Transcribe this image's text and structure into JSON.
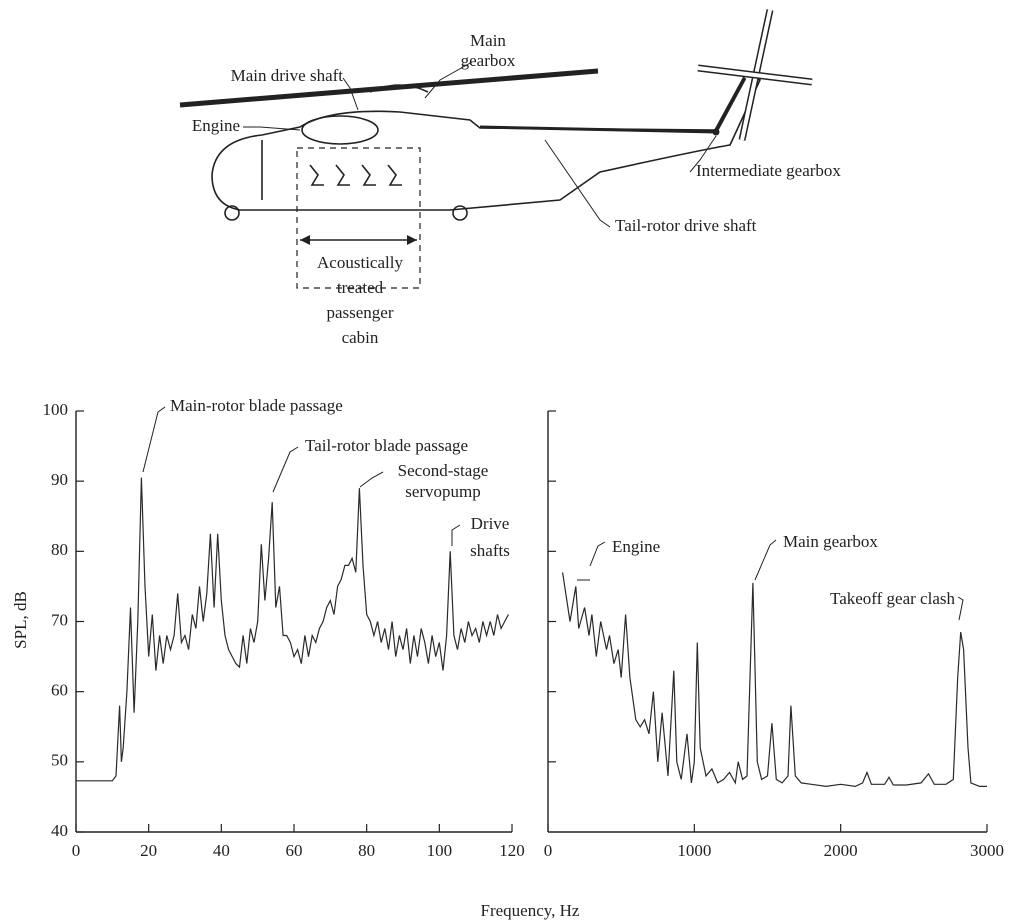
{
  "diagram": {
    "main_drive_shaft": "Main drive shaft",
    "main_gearbox": [
      "Main",
      "gearbox"
    ],
    "engine": "Engine",
    "intermediate_gearbox": "Intermediate gearbox",
    "tail_rotor_drive_shaft": "Tail-rotor drive shaft",
    "cabin": [
      "Acoustically",
      "treated",
      "passenger",
      "cabin"
    ]
  },
  "chart_data": [
    {
      "type": "line",
      "ylabel": "SPL, dB",
      "xlabel": "Frequency, Hz",
      "xlim": [
        0,
        120
      ],
      "xticks": [
        0,
        20,
        40,
        60,
        80,
        100,
        120
      ],
      "ylim": [
        40,
        100
      ],
      "yticks": [
        40,
        50,
        60,
        70,
        80,
        90,
        100
      ],
      "show_ytick_labels": true,
      "x": [
        0,
        5,
        10,
        11,
        12,
        12.5,
        13,
        14,
        15,
        16,
        17,
        18,
        19,
        20,
        21,
        22,
        23,
        24,
        25,
        26,
        27,
        28,
        29,
        30,
        31,
        32,
        33,
        34,
        35,
        36,
        37,
        38,
        39,
        40,
        41,
        42,
        43,
        44,
        45,
        46,
        47,
        48,
        49,
        50,
        51,
        52,
        53,
        54,
        55,
        56,
        57,
        58,
        59,
        60,
        61,
        62,
        63,
        64,
        65,
        66,
        67,
        68,
        69,
        70,
        71,
        72,
        73,
        74,
        75,
        76,
        77,
        78,
        79,
        80,
        81,
        82,
        83,
        84,
        85,
        86,
        87,
        88,
        89,
        90,
        91,
        92,
        93,
        94,
        95,
        96,
        97,
        98,
        99,
        100,
        101,
        102,
        103,
        104,
        105,
        106,
        107,
        108,
        109,
        110,
        111,
        112,
        113,
        114,
        115,
        116,
        117,
        118,
        119
      ],
      "series": [
        {
          "color": "#2a2a2a",
          "values": [
            47.3,
            47.3,
            47.3,
            48,
            58,
            50,
            52,
            60,
            72,
            57,
            70,
            90.5,
            75,
            65,
            71,
            63,
            68,
            64,
            68,
            66,
            68,
            74,
            67,
            68,
            66,
            71,
            69,
            75,
            70,
            74,
            82.5,
            72,
            82.5,
            73,
            68,
            66,
            65,
            64,
            63.5,
            68,
            64,
            69,
            67,
            70,
            81,
            73,
            79,
            87,
            72,
            75,
            68,
            68,
            67,
            65,
            66,
            64,
            68,
            65,
            68,
            67,
            69,
            70,
            72,
            73,
            71,
            75,
            76,
            78,
            78,
            79,
            77,
            89,
            78,
            71,
            70,
            68,
            70,
            67,
            69,
            66,
            70,
            65,
            68,
            66,
            69,
            64,
            68,
            65,
            69,
            67,
            64,
            68,
            65,
            67,
            63,
            68,
            80,
            68,
            66,
            69,
            67,
            70,
            68,
            69,
            67,
            70,
            68,
            70,
            68,
            71,
            69,
            70,
            71
          ]
        }
      ],
      "annotations": [
        [
          "Main-rotor blade passage"
        ],
        [
          "Tail-rotor blade passage"
        ],
        [
          "Second-stage",
          "servopump"
        ],
        [
          "Drive",
          "shafts"
        ]
      ]
    },
    {
      "type": "line",
      "xlim": [
        0,
        3000
      ],
      "xticks": [
        0,
        1000,
        2000,
        3000
      ],
      "ylim": [
        40,
        100
      ],
      "yticks": [
        50,
        60,
        70,
        80,
        90,
        100
      ],
      "show_ytick_labels": false,
      "x": [
        100,
        150,
        190,
        210,
        250,
        280,
        300,
        330,
        360,
        400,
        420,
        450,
        480,
        500,
        530,
        560,
        600,
        630,
        660,
        690,
        720,
        750,
        780,
        820,
        860,
        880,
        910,
        950,
        980,
        1000,
        1020,
        1040,
        1080,
        1120,
        1160,
        1200,
        1240,
        1280,
        1300,
        1330,
        1360,
        1400,
        1430,
        1460,
        1500,
        1530,
        1560,
        1600,
        1640,
        1660,
        1690,
        1730,
        1800,
        1900,
        2000,
        2100,
        2150,
        2180,
        2210,
        2300,
        2330,
        2360,
        2450,
        2550,
        2600,
        2640,
        2720,
        2770,
        2800,
        2820,
        2840,
        2870,
        2890,
        2950,
        3000
      ],
      "series": [
        {
          "color": "#2a2a2a",
          "values": [
            77,
            70,
            75,
            69,
            72,
            68,
            71,
            65,
            70,
            66,
            68,
            64,
            66,
            62,
            71,
            62,
            56,
            55,
            56,
            54,
            60,
            50,
            57,
            48,
            63,
            50,
            47.5,
            54,
            47,
            50,
            67,
            52,
            48,
            49,
            47,
            47.5,
            48.5,
            47,
            50,
            47.5,
            48,
            75.5,
            50,
            47.5,
            48,
            55.5,
            47.5,
            47,
            48,
            58,
            48,
            47,
            46.8,
            46.5,
            46.8,
            46.5,
            47,
            48.5,
            46.8,
            46.8,
            47.8,
            46.7,
            46.7,
            47,
            48.3,
            46.8,
            46.8,
            47.5,
            62,
            68.5,
            66,
            52,
            47,
            46.5,
            46.5
          ]
        }
      ],
      "annotations": [
        [
          "Engine"
        ],
        [
          "Main gearbox"
        ],
        [
          "Takeoff gear clash"
        ]
      ]
    }
  ]
}
